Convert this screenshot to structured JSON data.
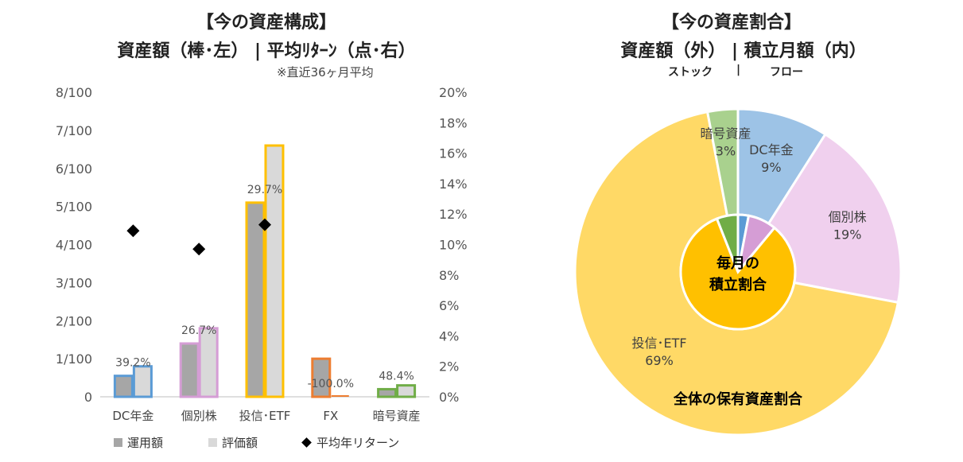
{
  "left_chart": {
    "title_line1": "【今の資産構成】",
    "title_line2": "資産額（棒･左） | 平均ﾘﾀｰﾝ（点･右）",
    "note": "※直近36ヶ月平均"
  },
  "right_chart": {
    "title_line1": "【今の資産割合】",
    "title_line2": "資産額（外） | 積立月額（内）",
    "sub_stock": "ストック",
    "sub_sep": "|",
    "sub_flow": "フロー",
    "inner_label_line1": "毎月の",
    "inner_label_line2": "積立割合",
    "outer_label": "全体の保有資産割合"
  },
  "legend": {
    "series1": "運用額",
    "series2": "評価額",
    "series3": "平均年リターン"
  },
  "colors": {
    "dc": "#5b9bd5",
    "kobetsu": "#d59dd5",
    "toushin": "#ffc000",
    "fx": "#ed7d31",
    "crypto": "#70ad47",
    "bar_fill_dark": "#a6a6a6",
    "bar_fill_light": "#d9d9d9"
  },
  "chart_data": [
    {
      "type": "bar",
      "categories": [
        "DC年金",
        "個別株",
        "投信･ETF",
        "FX",
        "暗号資産"
      ],
      "left_axis": {
        "ticks": [
          "0",
          "1/100",
          "2/100",
          "3/100",
          "4/100",
          "5/100",
          "6/100",
          "7/100",
          "8/100"
        ],
        "ylim": [
          0,
          8
        ]
      },
      "right_axis": {
        "ticks": [
          "0%",
          "2%",
          "4%",
          "6%",
          "8%",
          "10%",
          "12%",
          "14%",
          "16%",
          "18%",
          "20%"
        ],
        "ylim": [
          0,
          20
        ]
      },
      "series": [
        {
          "name": "運用額",
          "values": [
            0.55,
            1.4,
            5.1,
            1.0,
            0.2
          ]
        },
        {
          "name": "評価額",
          "values": [
            0.8,
            1.8,
            6.6,
            0.0,
            0.3
          ]
        },
        {
          "name": "平均年リターン",
          "values": [
            10.9,
            9.7,
            11.3,
            null,
            null
          ]
        }
      ],
      "data_labels": [
        "39.2%",
        "26.7%",
        "29.7%",
        "-100.0%",
        "48.4%"
      ]
    },
    {
      "type": "pie",
      "outer": {
        "labels": [
          "DC年金",
          "個別株",
          "投信･ETF",
          "暗号資産"
        ],
        "values": [
          9,
          19,
          69,
          3
        ],
        "value_labels": [
          "9%",
          "19%",
          "69%",
          "3%"
        ]
      },
      "inner": {
        "labels": [
          "DC年金",
          "個別株",
          "投信･ETF",
          "暗号資産"
        ],
        "values": [
          3,
          8,
          83,
          6
        ]
      }
    }
  ]
}
